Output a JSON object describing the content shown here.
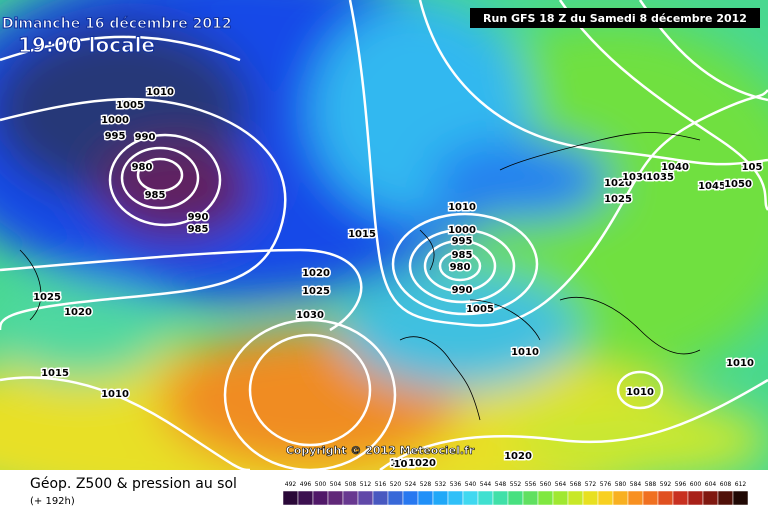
{
  "header": {
    "date": "Dimanche 16 décembre 2012",
    "time": "19:00 locale",
    "run": "Run GFS 18 Z du Samedi 8 décembre 2012"
  },
  "copyright": "Copyright © 2012 Meteociel.fr",
  "footer": {
    "title": "Géop. Z500 & pression au sol",
    "subtitle": "(+ 192h)"
  },
  "legend": {
    "labels": [
      492,
      496,
      500,
      504,
      508,
      512,
      516,
      520,
      524,
      528,
      532,
      536,
      540,
      544,
      548,
      552,
      556,
      560,
      564,
      568,
      572,
      576,
      580,
      584,
      588,
      592,
      596,
      600,
      604,
      608,
      612
    ]
  },
  "isobar_labels": [
    1010,
    1005,
    1000,
    995,
    990,
    980,
    985,
    990,
    985,
    1015,
    1020,
    1025,
    1030,
    1025,
    1020,
    1015,
    1010,
    1010,
    1000,
    995,
    985,
    980,
    990,
    1005,
    1010,
    1020,
    1025,
    1030,
    1035,
    1040,
    1045,
    1050,
    "105",
    1010,
    1010,
    1020,
    1020,
    "101",
    1020
  ]
}
